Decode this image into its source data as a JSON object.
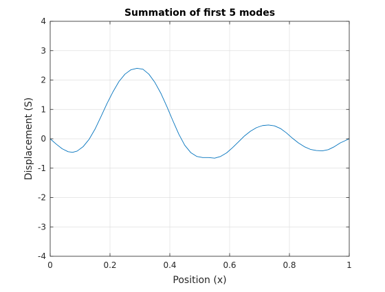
{
  "chart_data": {
    "type": "line",
    "title": "Summation of first 5 modes",
    "xlabel": "Position (x)",
    "ylabel": "Displacement (S)",
    "xlim": [
      0,
      1
    ],
    "ylim": [
      -4,
      4
    ],
    "xticks": [
      0,
      0.2,
      0.4,
      0.6,
      0.8,
      1
    ],
    "xtick_labels": [
      "0",
      "0.2",
      "0.4",
      "0.6",
      "0.8",
      "1"
    ],
    "yticks": [
      -4,
      -3,
      -2,
      -1,
      0,
      1,
      2,
      3,
      4
    ],
    "ytick_labels": [
      "-4",
      "-3",
      "-2",
      "-1",
      "0",
      "1",
      "2",
      "3",
      "4"
    ],
    "grid": true,
    "series": [
      {
        "color": "#0072bd",
        "x": [
          0,
          0.02,
          0.04,
          0.06,
          0.075,
          0.09,
          0.11,
          0.13,
          0.15,
          0.17,
          0.19,
          0.21,
          0.23,
          0.25,
          0.27,
          0.29,
          0.31,
          0.33,
          0.35,
          0.37,
          0.39,
          0.41,
          0.43,
          0.45,
          0.47,
          0.49,
          0.51,
          0.53,
          0.55,
          0.57,
          0.59,
          0.61,
          0.63,
          0.65,
          0.67,
          0.69,
          0.71,
          0.73,
          0.75,
          0.77,
          0.79,
          0.81,
          0.83,
          0.85,
          0.87,
          0.89,
          0.91,
          0.93,
          0.95,
          0.97,
          1.0
        ],
        "y": [
          0,
          -0.18,
          -0.34,
          -0.44,
          -0.46,
          -0.42,
          -0.27,
          -0.02,
          0.33,
          0.76,
          1.2,
          1.6,
          1.95,
          2.2,
          2.35,
          2.4,
          2.37,
          2.2,
          1.92,
          1.55,
          1.1,
          0.62,
          0.16,
          -0.22,
          -0.47,
          -0.6,
          -0.64,
          -0.64,
          -0.66,
          -0.6,
          -0.48,
          -0.3,
          -0.1,
          0.1,
          0.26,
          0.38,
          0.45,
          0.47,
          0.44,
          0.35,
          0.2,
          0.02,
          -0.14,
          -0.27,
          -0.36,
          -0.4,
          -0.41,
          -0.37,
          -0.27,
          -0.14,
          0
        ]
      }
    ]
  }
}
